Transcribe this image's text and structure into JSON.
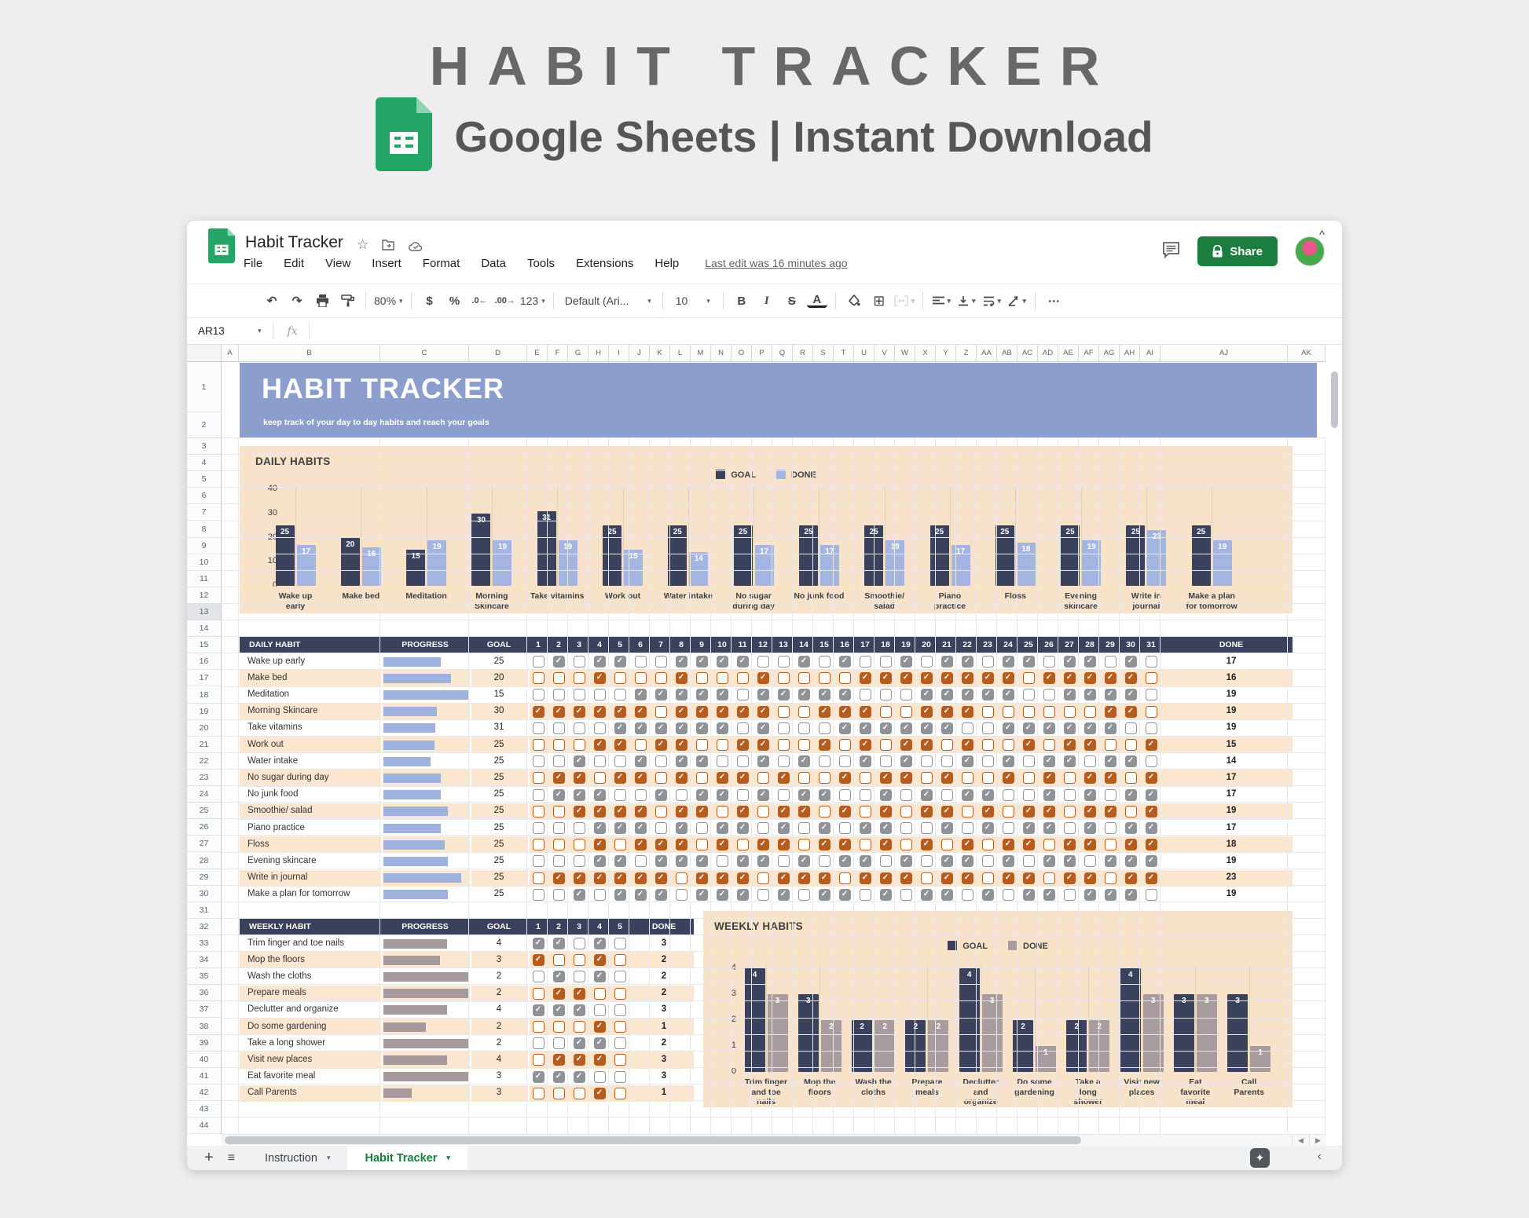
{
  "hero": {
    "title": "HABIT TRACKER",
    "subtitle": "Google Sheets | Instant Download"
  },
  "app": {
    "doc_title": "Habit Tracker",
    "menus": [
      "File",
      "Edit",
      "View",
      "Insert",
      "Format",
      "Data",
      "Tools",
      "Extensions",
      "Help"
    ],
    "last_edit": "Last edit was 16 minutes ago",
    "share_label": "Share",
    "name_box": "AR13",
    "fx": "fx",
    "collapse": "^",
    "toolbar": [
      {
        "name": "undo",
        "glyph": "↶"
      },
      {
        "name": "redo",
        "glyph": "↷"
      },
      {
        "name": "print",
        "svg": "print"
      },
      {
        "name": "paint-format",
        "svg": "paint"
      },
      {
        "sep": true
      },
      {
        "name": "zoom",
        "label": "80%",
        "dd": true
      },
      {
        "sep": true
      },
      {
        "name": "format-currency",
        "glyph": "$"
      },
      {
        "name": "format-percent",
        "glyph": "%"
      },
      {
        "name": "decrease-decimals",
        "glyph": ".0←",
        "small": true
      },
      {
        "name": "increase-decimals",
        "glyph": ".00→",
        "small": true
      },
      {
        "name": "more-formats",
        "label": "123",
        "dd": true
      },
      {
        "sep": true
      },
      {
        "name": "font-family",
        "label": "Default (Ari...",
        "dd": true,
        "wide": true
      },
      {
        "sep": true
      },
      {
        "name": "font-size",
        "label": "10",
        "dd": true,
        "numbox": true
      },
      {
        "sep": true
      },
      {
        "name": "bold",
        "glyph": "B",
        "style": "font-weight:800"
      },
      {
        "name": "italic",
        "glyph": "I",
        "style": "font-style:italic;font-family:'Liberation Serif',serif"
      },
      {
        "name": "strikethrough",
        "glyph": "S",
        "style": "text-decoration:line-through"
      },
      {
        "name": "text-color",
        "glyph": "A",
        "style": "border-bottom:3px solid #202124;line-height:14px;height:18px"
      },
      {
        "sep": true
      },
      {
        "name": "fill-color",
        "svg": "fill"
      },
      {
        "name": "borders",
        "glyph": "⊞",
        "style": "font-size:18px;font-weight:400"
      },
      {
        "name": "merge-cells",
        "svg": "merge",
        "dd": true,
        "disabled": true
      },
      {
        "sep": true
      },
      {
        "name": "horizontal-align",
        "svg": "align",
        "dd": true
      },
      {
        "name": "vertical-align",
        "svg": "valign",
        "dd": true
      },
      {
        "name": "text-wrapping",
        "svg": "wrap",
        "dd": true
      },
      {
        "name": "text-rotation",
        "svg": "rotate",
        "dd": true
      },
      {
        "sep": true
      },
      {
        "name": "more",
        "glyph": "⋯"
      }
    ]
  },
  "grid": {
    "columns": [
      "A",
      "B",
      "C",
      "D",
      "E",
      "F",
      "G",
      "H",
      "I",
      "J",
      "K",
      "L",
      "M",
      "N",
      "O",
      "P",
      "Q",
      "R",
      "S",
      "T",
      "U",
      "V",
      "W",
      "X",
      "Y",
      "Z",
      "AA",
      "AB",
      "AC",
      "AD",
      "AE",
      "AF",
      "AG",
      "AH",
      "AI",
      "AJ",
      "AK"
    ],
    "row_count": 44,
    "highlighted_row": 13
  },
  "banner": {
    "title": "HABIT TRACKER",
    "subtitle": "keep track of your day to day habits and reach your goals"
  },
  "daily": {
    "panel_title": "DAILY HABITS",
    "headers": {
      "habit": "DAILY HABIT",
      "progress": "PROGRESS",
      "goal": "GOAL",
      "done": "DONE"
    },
    "day_count": 31,
    "rows": [
      {
        "habit": "Wake up early",
        "goal": 25,
        "done": 17,
        "checked_days": [
          2,
          4,
          5,
          8,
          9,
          10,
          11,
          14,
          16,
          19,
          21,
          22,
          24,
          25,
          27,
          28,
          30
        ]
      },
      {
        "habit": "Make bed",
        "goal": 20,
        "done": 16,
        "checked_days": [
          4,
          8,
          12,
          17,
          18,
          19,
          20,
          21,
          22,
          23,
          24,
          26,
          27,
          28,
          29,
          30
        ]
      },
      {
        "habit": "Meditation",
        "goal": 15,
        "done": 19,
        "checked_days": [
          6,
          7,
          8,
          9,
          10,
          12,
          13,
          14,
          15,
          16,
          20,
          21,
          22,
          23,
          24,
          27,
          28,
          29,
          30
        ]
      },
      {
        "habit": "Morning Skincare",
        "goal": 30,
        "done": 19,
        "checked_days": [
          1,
          2,
          3,
          4,
          5,
          6,
          8,
          9,
          10,
          11,
          12,
          15,
          16,
          17,
          20,
          21,
          22,
          29,
          30
        ]
      },
      {
        "habit": "Take vitamins",
        "goal": 31,
        "done": 19,
        "checked_days": [
          5,
          6,
          7,
          8,
          9,
          10,
          12,
          16,
          17,
          18,
          19,
          20,
          21,
          24,
          25,
          26,
          27,
          28,
          29
        ]
      },
      {
        "habit": "Work out",
        "goal": 25,
        "done": 15,
        "checked_days": [
          4,
          5,
          7,
          8,
          11,
          12,
          15,
          17,
          19,
          20,
          22,
          25,
          27,
          28,
          31
        ]
      },
      {
        "habit": "Water intake",
        "goal": 25,
        "done": 14,
        "checked_days": [
          3,
          6,
          8,
          9,
          12,
          14,
          17,
          19,
          22,
          24,
          26,
          27,
          29,
          30
        ]
      },
      {
        "habit": "No sugar during day",
        "goal": 25,
        "done": 17,
        "checked_days": [
          2,
          3,
          5,
          6,
          8,
          10,
          11,
          13,
          16,
          18,
          19,
          21,
          24,
          26,
          28,
          29,
          31
        ]
      },
      {
        "habit": "No junk food",
        "goal": 25,
        "done": 17,
        "checked_days": [
          2,
          3,
          4,
          7,
          9,
          10,
          12,
          14,
          15,
          18,
          20,
          22,
          23,
          26,
          28,
          30,
          31
        ]
      },
      {
        "habit": "Smoothie/ salad",
        "goal": 25,
        "done": 19,
        "checked_days": [
          3,
          4,
          5,
          6,
          8,
          9,
          11,
          13,
          14,
          16,
          18,
          20,
          21,
          23,
          25,
          26,
          28,
          29,
          31
        ]
      },
      {
        "habit": "Piano practice",
        "goal": 25,
        "done": 17,
        "checked_days": [
          4,
          5,
          6,
          8,
          10,
          11,
          13,
          15,
          17,
          18,
          21,
          23,
          25,
          26,
          28,
          30,
          31
        ]
      },
      {
        "habit": "Floss",
        "goal": 25,
        "done": 18,
        "checked_days": [
          4,
          6,
          7,
          8,
          10,
          12,
          13,
          15,
          16,
          18,
          20,
          22,
          24,
          25,
          27,
          28,
          30,
          31
        ]
      },
      {
        "habit": "Evening skincare",
        "goal": 25,
        "done": 19,
        "checked_days": [
          4,
          5,
          7,
          8,
          9,
          11,
          12,
          14,
          16,
          17,
          19,
          21,
          22,
          24,
          26,
          27,
          29,
          30,
          31
        ]
      },
      {
        "habit": "Write in journal",
        "goal": 25,
        "done": 23,
        "checked_days": [
          2,
          3,
          4,
          5,
          6,
          7,
          9,
          10,
          11,
          13,
          14,
          15,
          17,
          18,
          19,
          21,
          22,
          24,
          25,
          27,
          28,
          30,
          31
        ]
      },
      {
        "habit": "Make a plan for tomorrow",
        "goal": 25,
        "done": 19,
        "checked_days": [
          3,
          5,
          6,
          7,
          9,
          10,
          11,
          13,
          15,
          16,
          18,
          20,
          21,
          23,
          25,
          26,
          28,
          29,
          30
        ]
      }
    ]
  },
  "weekly": {
    "panel_title": "WEEKLY HABITS",
    "headers": {
      "habit": "WEEKLY HABIT",
      "progress": "PROGRESS",
      "goal": "GOAL",
      "done": "DONE"
    },
    "day_count": 5,
    "rows": [
      {
        "habit": "Trim finger and toe nails",
        "goal": 4,
        "done": 3,
        "checked_days": [
          1,
          2,
          4
        ]
      },
      {
        "habit": "Mop the floors",
        "goal": 3,
        "done": 2,
        "checked_days": [
          1,
          4
        ]
      },
      {
        "habit": "Wash the cloths",
        "goal": 2,
        "done": 2,
        "checked_days": [
          2,
          4
        ]
      },
      {
        "habit": "Prepare meals",
        "goal": 2,
        "done": 2,
        "checked_days": [
          2,
          3
        ]
      },
      {
        "habit": "Declutter and organize",
        "goal": 4,
        "done": 3,
        "checked_days": [
          1,
          2,
          3
        ]
      },
      {
        "habit": "Do some gardening",
        "goal": 2,
        "done": 1,
        "checked_days": [
          4
        ]
      },
      {
        "habit": "Take a long shower",
        "goal": 2,
        "done": 2,
        "checked_days": [
          3,
          4
        ]
      },
      {
        "habit": "Visit new places",
        "goal": 4,
        "done": 3,
        "checked_days": [
          2,
          3,
          4
        ]
      },
      {
        "habit": "Eat favorite meal",
        "goal": 3,
        "done": 3,
        "checked_days": [
          1,
          2,
          3
        ]
      },
      {
        "habit": "Call Parents",
        "goal": 3,
        "done": 1,
        "checked_days": [
          4
        ]
      }
    ]
  },
  "chart_data": [
    {
      "type": "bar",
      "title": "DAILY HABITS",
      "legend": [
        "GOAL",
        "DONE"
      ],
      "legend_position": "top",
      "ylim": [
        0,
        40
      ],
      "yticks": [
        0,
        10,
        20,
        30,
        40
      ],
      "grid": "vertical-category-lines",
      "categories": [
        "Wake up early",
        "Make bed",
        "Meditation",
        "Morning Skincare",
        "Take vitamins",
        "Work out",
        "Water intake",
        "No sugar during day",
        "No junk food",
        "Smoothie/ salad",
        "Piano practice",
        "Floss",
        "Evening skincare",
        "Write in journal",
        "Make a plan for tomorrow"
      ],
      "label_lines": [
        [
          "Wake up",
          "early"
        ],
        [
          "Make bed"
        ],
        [
          "Meditation"
        ],
        [
          "Morning",
          "Skincare"
        ],
        [
          "Take vitamins"
        ],
        [
          "Work out"
        ],
        [
          "Water intake"
        ],
        [
          "No sugar",
          "during day"
        ],
        [
          "No junk food"
        ],
        [
          "Smoothie/",
          "salad"
        ],
        [
          "Piano",
          "practice"
        ],
        [
          "Floss"
        ],
        [
          "Evening",
          "skincare"
        ],
        [
          "Write in",
          "journal"
        ],
        [
          "Make a plan",
          "for tomorrow"
        ]
      ],
      "series": [
        {
          "name": "GOAL",
          "color": "#39415c",
          "values": [
            25,
            20,
            15,
            30,
            31,
            25,
            25,
            25,
            25,
            25,
            25,
            25,
            25,
            25,
            25
          ]
        },
        {
          "name": "DONE",
          "color": "#a3b5e0",
          "values": [
            17,
            16,
            19,
            19,
            19,
            15,
            14,
            17,
            17,
            19,
            17,
            18,
            19,
            23,
            19
          ]
        }
      ]
    },
    {
      "type": "bar",
      "title": "WEEKLY HABITS",
      "legend": [
        "GOAL",
        "DONE"
      ],
      "legend_position": "top",
      "ylim": [
        0,
        4
      ],
      "yticks": [
        0,
        1,
        2,
        3,
        4
      ],
      "grid": "vertical-category-lines",
      "categories": [
        "Trim finger and toe nails",
        "Mop the floors",
        "Wash the cloths",
        "Prepare meals",
        "Declutter and organize",
        "Do some gardening",
        "Take a long shower",
        "Visit new places",
        "Eat favorite meal",
        "Call Parents"
      ],
      "label_lines": [
        [
          "Trim finger",
          "and toe",
          "nails"
        ],
        [
          "Mop the",
          "floors"
        ],
        [
          "Wash the",
          "cloths"
        ],
        [
          "Prepare",
          "meals"
        ],
        [
          "Declutter",
          "and",
          "organize"
        ],
        [
          "Do some",
          "gardening"
        ],
        [
          "Take a",
          "long",
          "shower"
        ],
        [
          "Visit new",
          "places"
        ],
        [
          "Eat",
          "favorite",
          "meal"
        ],
        [
          "Call",
          "Parents"
        ]
      ],
      "series": [
        {
          "name": "GOAL",
          "color": "#39415c",
          "values": [
            4,
            3,
            2,
            2,
            4,
            2,
            2,
            4,
            3,
            3
          ]
        },
        {
          "name": "DONE",
          "color": "#a89c9e",
          "values": [
            3,
            2,
            2,
            2,
            3,
            1,
            2,
            3,
            3,
            1
          ]
        }
      ]
    }
  ],
  "tabs": {
    "add": "+",
    "all_sheets": "≡",
    "items": [
      {
        "label": "Instruction",
        "active": false
      },
      {
        "label": "Habit Tracker",
        "active": true
      }
    ]
  },
  "colors": {
    "accent_navy": "#39415c",
    "banner_blue": "#8c9ecd",
    "panel_peach": "#f8e3ca",
    "row_peach": "#fbe6d0",
    "check_orange": "#b55c1e",
    "check_gray": "#8f9397",
    "progress_daily": "#9fb2dd",
    "progress_weekly": "#a69a9c",
    "share_green": "#1b7e3e",
    "tab_green": "#157f3c"
  }
}
